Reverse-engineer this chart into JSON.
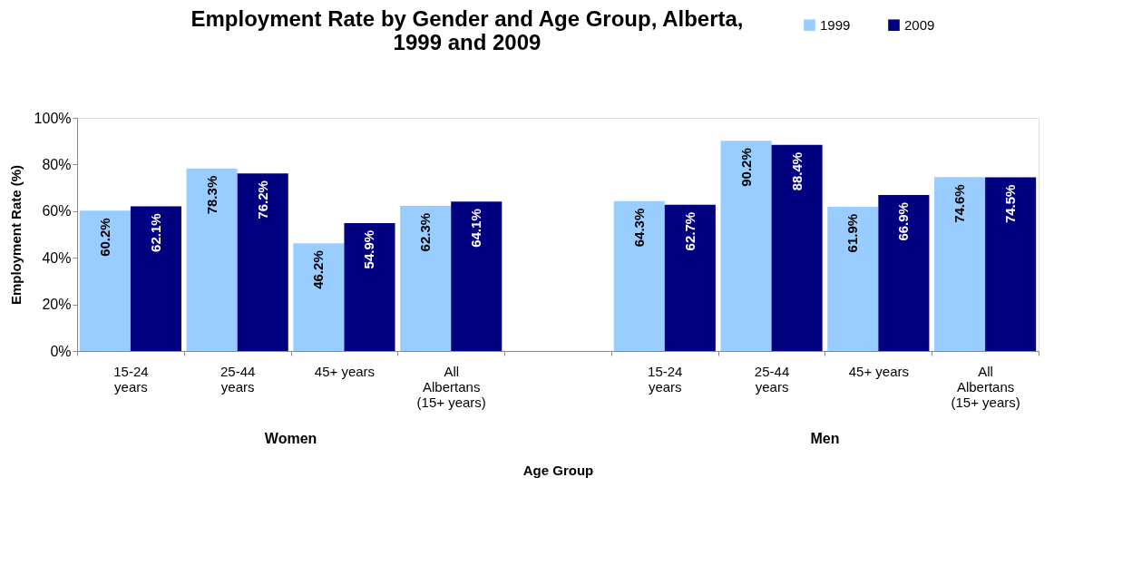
{
  "chart_data": {
    "type": "bar",
    "title": "Employment Rate by Gender and Age Group, Alberta, 1999 and 2009",
    "xlabel": "Age Group",
    "ylabel": "Employment Rate (%)",
    "categories": [
      "15-24 years",
      "25-44 years",
      "45+ years",
      "All Albertans (15+ years)",
      null,
      "15-24 years",
      "25-44 years",
      "45+ years",
      "All Albertans (15+ years)"
    ],
    "series": [
      {
        "name": "1999",
        "color": "#99ccff",
        "values": [
          60.2,
          78.3,
          46.2,
          62.3,
          null,
          64.3,
          90.2,
          61.9,
          74.6
        ],
        "value_labels": [
          "60.2%",
          "78.3%",
          "46.2%",
          "62.3%",
          null,
          "64.3%",
          "90.2%",
          "61.9%",
          "74.6%"
        ]
      },
      {
        "name": "2009",
        "color": "#000080",
        "values": [
          62.1,
          76.2,
          54.9,
          64.1,
          null,
          62.7,
          88.4,
          66.9,
          74.5
        ],
        "value_labels": [
          "62.1%",
          "76.2%",
          "54.9%",
          "64.1%",
          null,
          "62.7%",
          "88.4%",
          "66.9%",
          "74.5%"
        ]
      }
    ],
    "ylim": [
      0,
      100
    ],
    "yticks": [
      {
        "value": 0,
        "label": "0%"
      },
      {
        "value": 20,
        "label": "20%"
      },
      {
        "value": 40,
        "label": "40%"
      },
      {
        "value": 60,
        "label": "60%"
      },
      {
        "value": 80,
        "label": "80%"
      },
      {
        "value": 100,
        "label": "100%"
      }
    ],
    "annotations": [
      "Women",
      "Men"
    ],
    "legend": "top right",
    "grid": false
  }
}
